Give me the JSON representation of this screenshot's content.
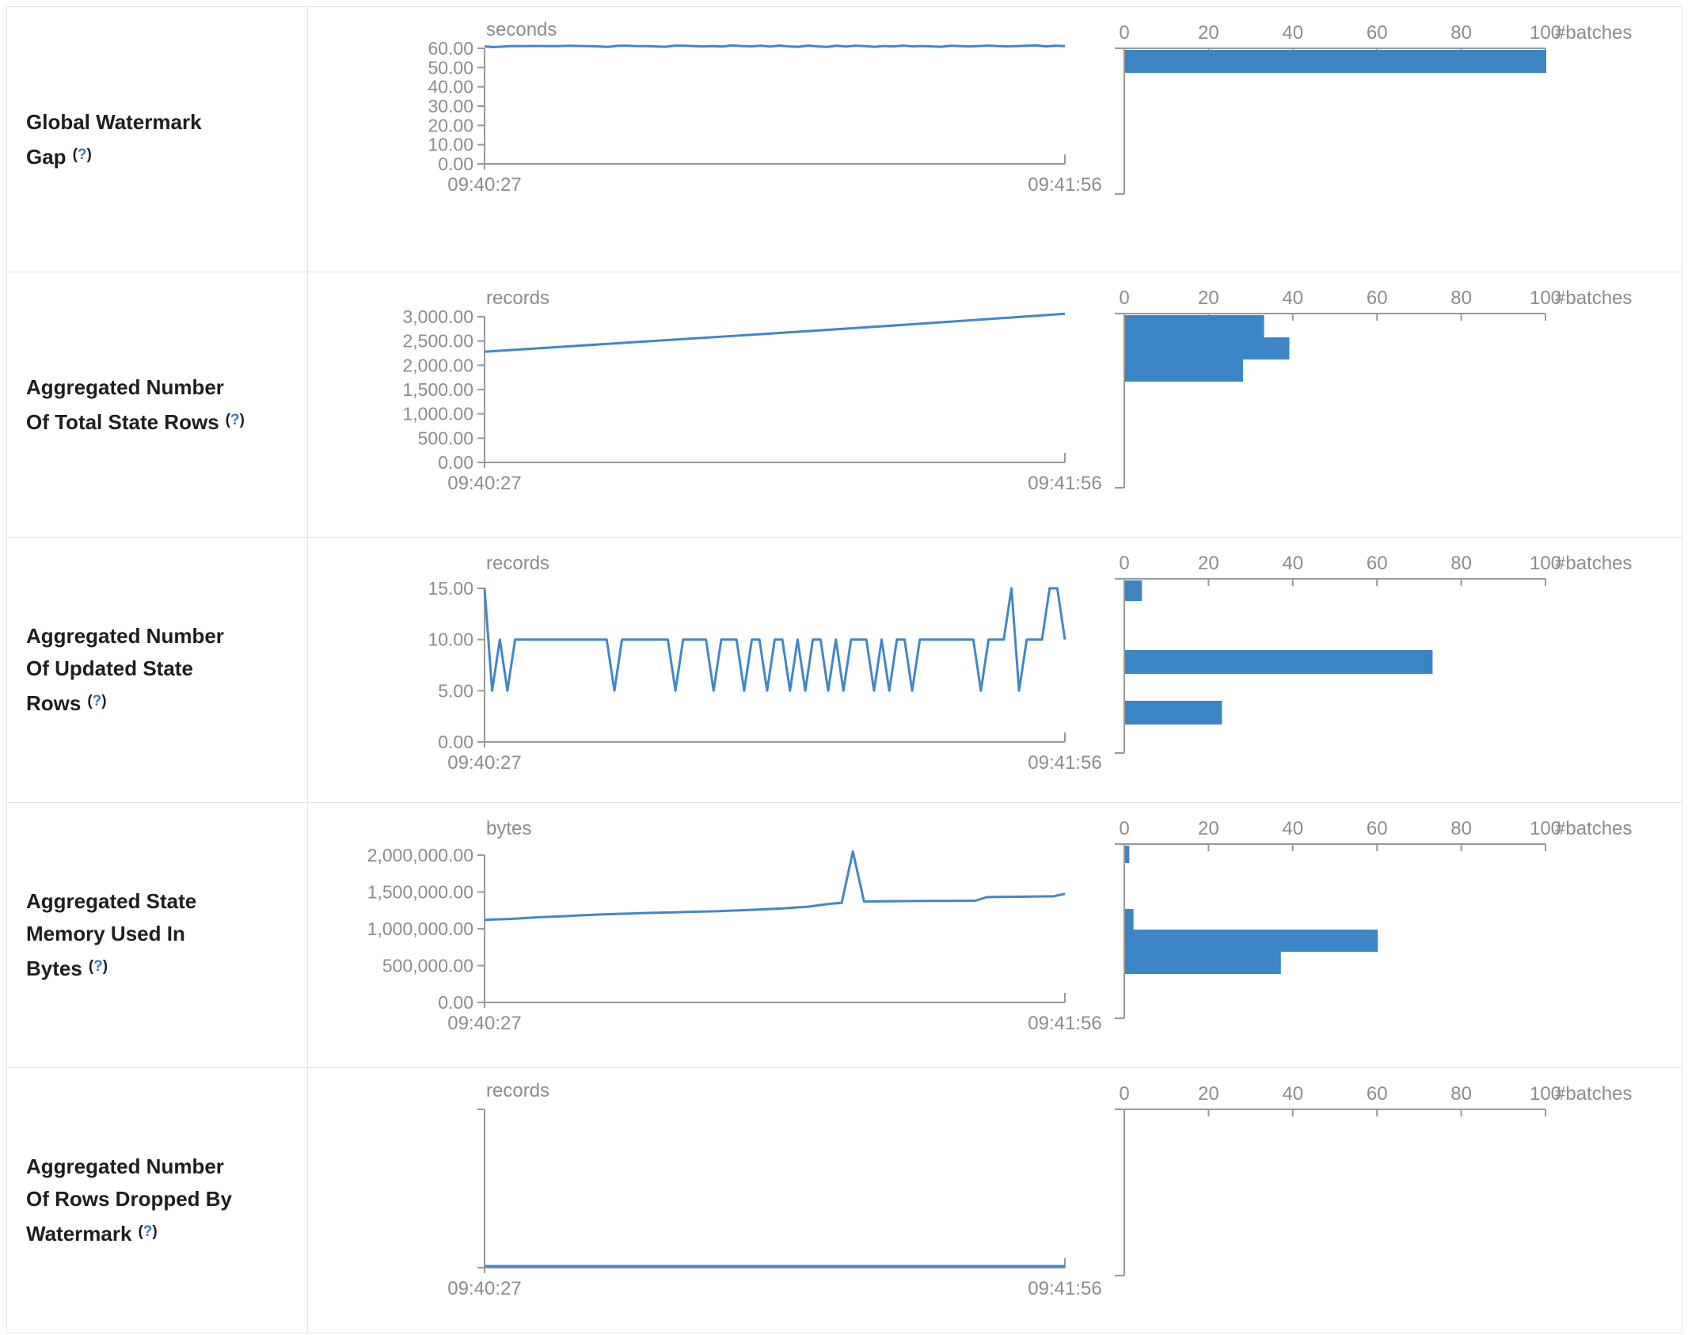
{
  "palette": {
    "line": "#4287c7",
    "bar": "#3c85c5",
    "axis": "#999999",
    "tick_text": "#8c8c8c",
    "label_text": "#1b1e23",
    "help_link": "#3879be",
    "border": "#e1e3e5"
  },
  "rows": [
    {
      "label": "Global Watermark Gap",
      "help": {
        "open": "(",
        "q": "?",
        "close": ")"
      }
    },
    {
      "label": "Aggregated Number Of Total State Rows",
      "help": {
        "open": "(",
        "q": "?",
        "close": ")"
      }
    },
    {
      "label": "Aggregated Number Of Updated State Rows",
      "help": {
        "open": "(",
        "q": "?",
        "close": ")"
      }
    },
    {
      "label": "Aggregated State Memory Used In Bytes",
      "help": {
        "open": "(",
        "q": "?",
        "close": ")"
      }
    },
    {
      "label": "Aggregated Number Of Rows Dropped By Watermark",
      "help": {
        "open": "(",
        "q": "?",
        "close": ")"
      }
    }
  ],
  "chart_data": [
    {
      "metric": "Global Watermark Gap",
      "timeline": {
        "type": "line",
        "unit": "seconds",
        "x_start": "09:40:27",
        "x_end": "09:41:56",
        "yticks": [
          [
            60,
            "60.00"
          ],
          [
            50,
            "50.00"
          ],
          [
            40,
            "40.00"
          ],
          [
            30,
            "30.00"
          ],
          [
            20,
            "20.00"
          ],
          [
            10,
            "10.00"
          ],
          [
            0,
            "0.00"
          ]
        ],
        "values": [
          61.0,
          60.6,
          60.9,
          61.2,
          61.1,
          61.2,
          61.2,
          61.1,
          61.2,
          61.3,
          61.2,
          61.1,
          61.0,
          60.7,
          61.3,
          61.3,
          61.1,
          61.1,
          61.0,
          60.8,
          61.4,
          61.3,
          61.1,
          61.0,
          61.1,
          60.9,
          61.5,
          61.2,
          61.0,
          61.3,
          60.9,
          61.4,
          61.0,
          60.8,
          61.4,
          61.0,
          60.7,
          61.3,
          60.9,
          61.3,
          61.1,
          60.8,
          61.2,
          61.0,
          61.4,
          61.0,
          61.2,
          61.0,
          60.8,
          61.3,
          61.1,
          61.0,
          61.2,
          61.4,
          61.1,
          61.0,
          61.1,
          61.3,
          61.5,
          61.0,
          61.3,
          61.1
        ],
        "layout": {
          "top": 52,
          "bottom": 198
        }
      },
      "histogram": {
        "type": "bar",
        "xlabel": "#batches",
        "xticks": [
          0,
          20,
          40,
          60,
          80,
          100
        ],
        "bars": [
          {
            "count": 100,
            "y": 54,
            "h": 29
          }
        ],
        "layout": {
          "bottom": 236
        }
      }
    },
    {
      "metric": "Aggregated Number Of Total State Rows",
      "timeline": {
        "type": "line",
        "unit": "records",
        "x_start": "09:40:27",
        "x_end": "09:41:56",
        "yticks": [
          [
            3000,
            "3,000.00"
          ],
          [
            2500,
            "2,500.00"
          ],
          [
            2000,
            "2,000.00"
          ],
          [
            1500,
            "1,500.00"
          ],
          [
            1000,
            "1,000.00"
          ],
          [
            500,
            "500.00"
          ],
          [
            0,
            "0.00"
          ]
        ],
        "values": [
          2280,
          2470,
          2660,
          2855,
          3060
        ],
        "layout": {
          "top": 56,
          "bottom": 240
        }
      },
      "histogram": {
        "type": "bar",
        "xlabel": "#batches",
        "xticks": [
          0,
          20,
          40,
          60,
          80,
          100
        ],
        "bars": [
          {
            "count": 33,
            "y": 54,
            "h": 28
          },
          {
            "count": 39,
            "y": 82,
            "h": 28
          },
          {
            "count": 28,
            "y": 110,
            "h": 28
          }
        ],
        "layout": {
          "bottom": 272
        }
      }
    },
    {
      "metric": "Aggregated Number Of Updated State Rows",
      "timeline": {
        "type": "line",
        "unit": "records",
        "x_start": "09:40:27",
        "x_end": "09:41:56",
        "yticks": [
          [
            15,
            "15.00"
          ],
          [
            10,
            "10.00"
          ],
          [
            5,
            "5.00"
          ],
          [
            0,
            "0.00"
          ]
        ],
        "values": [
          15,
          5,
          10,
          5,
          10,
          10,
          10,
          10,
          10,
          10,
          10,
          10,
          10,
          10,
          10,
          10,
          10,
          5,
          10,
          10,
          10,
          10,
          10,
          10,
          10,
          5,
          10,
          10,
          10,
          10,
          5,
          10,
          10,
          10,
          5,
          10,
          10,
          5,
          10,
          10,
          5,
          10,
          5,
          10,
          10,
          5,
          10,
          5,
          10,
          10,
          10,
          5,
          10,
          5,
          10,
          10,
          5,
          10,
          10,
          10,
          10,
          10,
          10,
          10,
          10,
          5,
          10,
          10,
          10,
          15,
          5,
          10,
          10,
          10,
          15,
          15,
          10
        ],
        "layout": {
          "top": 64,
          "bottom": 258
        }
      },
      "histogram": {
        "type": "bar",
        "xlabel": "#batches",
        "xticks": [
          0,
          20,
          40,
          60,
          80,
          100
        ],
        "bars": [
          {
            "count": 4,
            "y": 54,
            "h": 26
          },
          {
            "count": 73,
            "y": 142,
            "h": 30
          },
          {
            "count": 23,
            "y": 206,
            "h": 30
          }
        ],
        "layout": {
          "bottom": 272
        }
      }
    },
    {
      "metric": "Aggregated State Memory Used In Bytes",
      "timeline": {
        "type": "line",
        "unit": "bytes",
        "x_start": "09:40:27",
        "x_end": "09:41:56",
        "yticks": [
          [
            2000000,
            "2,000,000.00"
          ],
          [
            1500000,
            "1,500,000.00"
          ],
          [
            1000000,
            "1,000,000.00"
          ],
          [
            500000,
            "500,000.00"
          ],
          [
            0,
            "0.00"
          ]
        ],
        "values": [
          1120000,
          1128000,
          1132000,
          1140000,
          1150000,
          1158000,
          1163000,
          1170000,
          1178000,
          1185000,
          1192000,
          1198000,
          1203000,
          1207000,
          1212000,
          1216000,
          1220000,
          1224000,
          1228000,
          1232000,
          1236000,
          1240000,
          1246000,
          1252000,
          1258000,
          1264000,
          1272000,
          1280000,
          1290000,
          1300000,
          1322000,
          1340000,
          1352000,
          2050000,
          1370000,
          1372000,
          1374000,
          1375000,
          1376000,
          1377000,
          1378000,
          1379000,
          1380000,
          1381000,
          1382000,
          1430000,
          1432000,
          1434000,
          1436000,
          1438000,
          1440000,
          1442000,
          1475000
        ],
        "layout": {
          "top": 66,
          "bottom": 252
        }
      },
      "histogram": {
        "type": "bar",
        "xlabel": "#batches",
        "xticks": [
          0,
          20,
          40,
          60,
          80,
          100
        ],
        "bars": [
          {
            "count": 1,
            "y": 54,
            "h": 22
          },
          {
            "count": 2,
            "y": 134,
            "h": 26
          },
          {
            "count": 60,
            "y": 160,
            "h": 28
          },
          {
            "count": 37,
            "y": 188,
            "h": 28
          }
        ],
        "layout": {
          "bottom": 272
        }
      }
    },
    {
      "metric": "Aggregated Number Of Rows Dropped By Watermark",
      "timeline": {
        "type": "line",
        "unit": "records",
        "x_start": "09:40:27",
        "x_end": "09:41:56",
        "yticks": [],
        "values": [
          0,
          0
        ],
        "layout": {
          "top": 52,
          "bottom": 252
        }
      },
      "histogram": {
        "type": "bar",
        "xlabel": "#batches",
        "xticks": [
          0,
          20,
          40,
          60,
          80,
          100
        ],
        "bars": [],
        "layout": {
          "bottom": 262
        }
      }
    }
  ]
}
